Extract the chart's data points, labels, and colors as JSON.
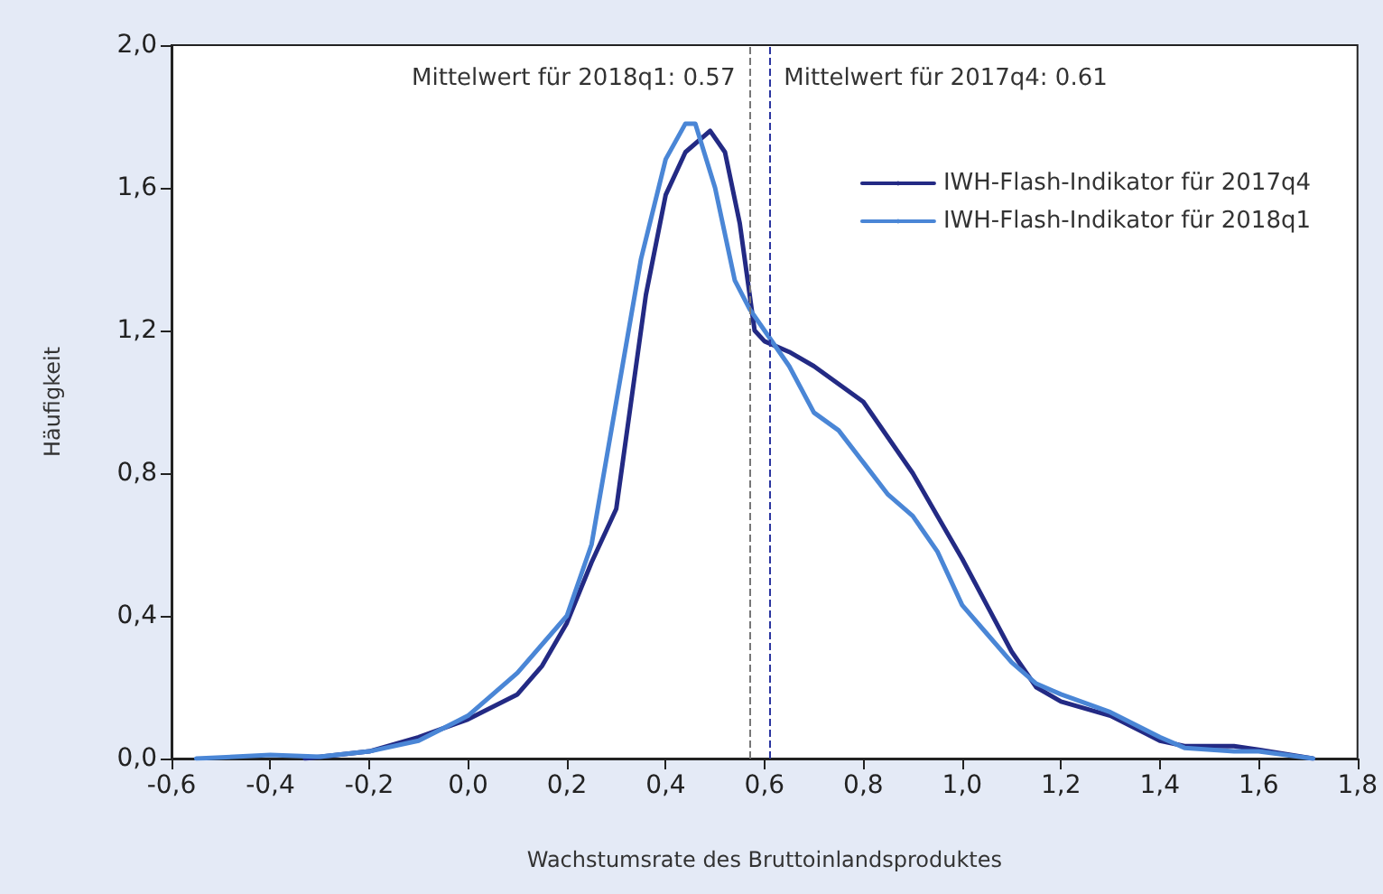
{
  "chart_data": {
    "type": "line",
    "xlabel": "Wachstumsrate des Bruttoinlandsproduktes",
    "ylabel": "Häufigkeit",
    "series": [
      {
        "name": "IWH-Flash-Indikator für 2017q4",
        "color": "#232a84",
        "x": [
          -0.33,
          -0.2,
          -0.1,
          0.0,
          0.1,
          0.15,
          0.2,
          0.25,
          0.3,
          0.33,
          0.36,
          0.4,
          0.44,
          0.49,
          0.52,
          0.55,
          0.58,
          0.6,
          0.65,
          0.7,
          0.75,
          0.8,
          0.85,
          0.9,
          0.95,
          1.0,
          1.05,
          1.1,
          1.15,
          1.2,
          1.3,
          1.4,
          1.45,
          1.55,
          1.6,
          1.71
        ],
        "values": [
          0,
          0.02,
          0.06,
          0.11,
          0.18,
          0.26,
          0.38,
          0.55,
          0.7,
          1.0,
          1.3,
          1.58,
          1.7,
          1.76,
          1.7,
          1.5,
          1.2,
          1.17,
          1.14,
          1.1,
          1.05,
          1.0,
          0.9,
          0.8,
          0.68,
          0.56,
          0.43,
          0.3,
          0.2,
          0.16,
          0.12,
          0.05,
          0.035,
          0.035,
          0.025,
          0
        ]
      },
      {
        "name": "IWH-Flash-Indikator für 2018q1",
        "color": "#4a86d6",
        "x": [
          -0.55,
          -0.4,
          -0.3,
          -0.2,
          -0.1,
          0.0,
          0.1,
          0.2,
          0.25,
          0.3,
          0.35,
          0.4,
          0.44,
          0.46,
          0.5,
          0.54,
          0.57,
          0.6,
          0.65,
          0.7,
          0.75,
          0.8,
          0.85,
          0.9,
          0.95,
          1.0,
          1.05,
          1.1,
          1.15,
          1.2,
          1.3,
          1.4,
          1.45,
          1.55,
          1.6,
          1.71
        ],
        "values": [
          0,
          0.01,
          0.005,
          0.02,
          0.05,
          0.12,
          0.24,
          0.4,
          0.6,
          1.0,
          1.4,
          1.68,
          1.78,
          1.78,
          1.6,
          1.34,
          1.26,
          1.2,
          1.1,
          0.97,
          0.92,
          0.83,
          0.74,
          0.68,
          0.58,
          0.43,
          0.35,
          0.27,
          0.21,
          0.18,
          0.13,
          0.06,
          0.03,
          0.02,
          0.02,
          0
        ]
      }
    ],
    "xlim": [
      -0.6,
      1.8
    ],
    "xticks": [
      {
        "value": -0.6,
        "label": "-0,6"
      },
      {
        "value": -0.4,
        "label": "-0,4"
      },
      {
        "value": -0.2,
        "label": "-0,2"
      },
      {
        "value": 0,
        "label": "0,0"
      },
      {
        "value": 0.2,
        "label": "0,2"
      },
      {
        "value": 0.4,
        "label": "0,4"
      },
      {
        "value": 0.6,
        "label": "0,6"
      },
      {
        "value": 0.8,
        "label": "0,8"
      },
      {
        "value": 1.0,
        "label": "1,0"
      },
      {
        "value": 1.2,
        "label": "1,2"
      },
      {
        "value": 1.4,
        "label": "1,4"
      },
      {
        "value": 1.6,
        "label": "1,6"
      },
      {
        "value": 1.8,
        "label": "1,8"
      }
    ],
    "ylim": [
      0,
      2
    ],
    "yticks": [
      {
        "value": 0,
        "label": "0,0"
      },
      {
        "value": 0.4,
        "label": "0,4"
      },
      {
        "value": 0.8,
        "label": "0,8"
      },
      {
        "value": 1.2,
        "label": "1,2"
      },
      {
        "value": 1.6,
        "label": "1,6"
      },
      {
        "value": 2.0,
        "label": "2,0"
      }
    ],
    "ref_lines": [
      {
        "axis": "x",
        "value": 0.57,
        "label": "Mittelwert für 2018q1: 0.57",
        "color": "#777777",
        "line_style": "dashed"
      },
      {
        "axis": "x",
        "value": 0.61,
        "label": "Mittelwert für 2017q4: 0.61",
        "color": "#2a35a0",
        "line_style": "dashed"
      }
    ],
    "grid": false,
    "legend": "top right",
    "marker": "none",
    "line_style": "solid"
  }
}
